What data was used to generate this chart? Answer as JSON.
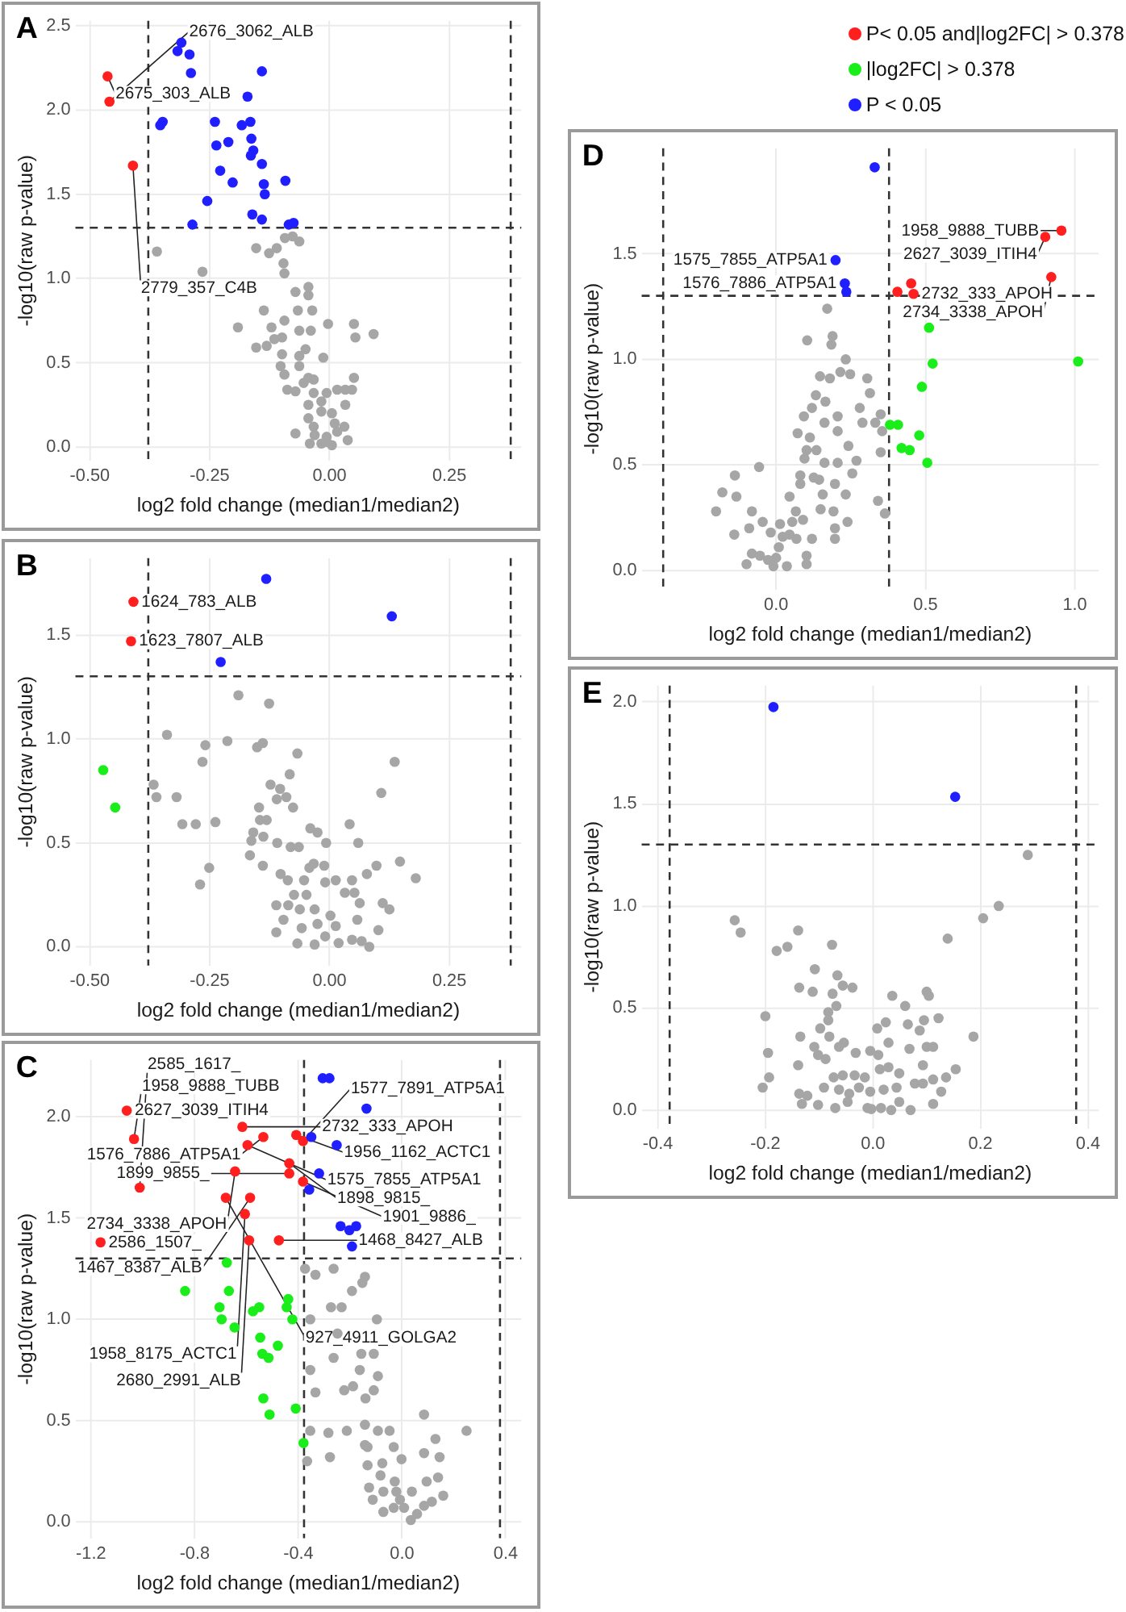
{
  "chart_data": [
    {
      "type": "scatter",
      "title": "A",
      "xlabel": "log2 fold change (median1/median2)",
      "ylabel": "-log10(raw p-value)",
      "xlim": [
        -0.53,
        0.4
      ],
      "ylim": [
        -0.08,
        2.53
      ],
      "xticks": [
        {
          "value": -0.5,
          "label": "-0.50"
        },
        {
          "value": -0.25,
          "label": "-0.25"
        },
        {
          "value": 0,
          "label": "0.00"
        },
        {
          "value": 0.25,
          "label": "0.25"
        }
      ],
      "yticks": [
        {
          "value": 0,
          "label": "0.0"
        },
        0.5,
        {
          "value": 1,
          "label": "1.0"
        },
        1.5,
        {
          "value": 2,
          "label": "2.0"
        },
        2.5
      ],
      "grid": true,
      "marker": "circle",
      "series": [
        {
          "color": "#a6a6a6",
          "x": [
            -0.36,
            -0.265,
            -0.153,
            -0.126,
            -0.11,
            -0.093,
            -0.077,
            -0.063,
            -0.096,
            -0.094,
            -0.044,
            -0.071,
            -0.044,
            -0.137,
            -0.066,
            -0.036,
            -0.094,
            -0.191,
            -0.121,
            -0.099,
            -0.063,
            -0.039,
            -0.003,
            0.051,
            0.054,
            0.092,
            -0.153,
            -0.131,
            -0.115,
            -0.05,
            -0.063,
            -0.099,
            -0.102,
            -0.063,
            -0.013,
            -0.094,
            -0.054,
            -0.044,
            -0.033,
            0.051,
            -0.088,
            -0.071,
            -0.033,
            -0.006,
            0.016,
            0.033,
            0.047,
            -0.044,
            -0.017,
            0.033,
            -0.044,
            -0.017,
            0.005,
            0.011,
            0.031,
            -0.033,
            -0.071,
            -0.031,
            -0.006,
            0.016,
            0.038,
            -0.041,
            -0.017,
            0.005,
            -0.006
          ],
          "values": [
            1.16,
            1.04,
            1.18,
            1.15,
            1.18,
            1.24,
            1.25,
            1.22,
            1.09,
            1.03,
            0.95,
            0.92,
            0.9,
            0.81,
            0.81,
            0.81,
            0.75,
            0.71,
            0.71,
            0.65,
            0.69,
            0.69,
            0.73,
            0.73,
            0.65,
            0.67,
            0.59,
            0.6,
            0.64,
            0.58,
            0.54,
            0.55,
            0.48,
            0.48,
            0.53,
            0.43,
            0.38,
            0.41,
            0.4,
            0.41,
            0.34,
            0.33,
            0.32,
            0.32,
            0.34,
            0.34,
            0.34,
            0.25,
            0.27,
            0.25,
            0.17,
            0.21,
            0.2,
            0.14,
            0.12,
            0.12,
            0.08,
            0.07,
            0.06,
            0.09,
            0.04,
            0.02,
            0.02,
            0.01,
            0.03
          ]
        },
        {
          "color": "#1f1fff",
          "x": [
            -0.309,
            -0.317,
            -0.292,
            -0.289,
            -0.141,
            -0.171,
            -0.348,
            -0.353,
            -0.239,
            -0.165,
            -0.183,
            -0.236,
            -0.211,
            -0.163,
            -0.159,
            -0.164,
            -0.228,
            -0.141,
            -0.202,
            -0.092,
            -0.137,
            -0.135,
            -0.255,
            -0.161,
            -0.141,
            -0.286,
            -0.085,
            -0.075
          ],
          "values": [
            2.4,
            2.35,
            2.33,
            2.22,
            2.23,
            2.08,
            1.93,
            1.91,
            1.93,
            1.93,
            1.91,
            1.79,
            1.81,
            1.83,
            1.76,
            1.73,
            1.64,
            1.68,
            1.57,
            1.58,
            1.56,
            1.5,
            1.46,
            1.38,
            1.35,
            1.32,
            1.32,
            1.33
          ]
        },
        {
          "color": "#ff1f1f",
          "x": [
            -0.463,
            -0.459,
            -0.41
          ],
          "values": [
            2.2,
            2.05,
            1.67
          ]
        }
      ],
      "ref_lines": [
        {
          "axis": "x",
          "value": -0.378,
          "line_style": "dashed"
        },
        {
          "axis": "x",
          "value": 0.378,
          "line_style": "dashed"
        },
        {
          "axis": "y",
          "value": 1.301,
          "line_style": "dashed"
        }
      ],
      "annotations": [
        {
          "text": "2675_303_ALB",
          "x": -0.463,
          "y": 2.2
        },
        {
          "text": "2676_3062_ALB",
          "x": -0.459,
          "y": 2.05
        },
        {
          "text": "2779_357_C4B",
          "x": -0.41,
          "y": 1.67
        }
      ]
    },
    {
      "type": "scatter",
      "title": "B",
      "xlabel": "log2 fold change (median1/median2)",
      "ylabel": "-log10(raw p-value)",
      "xlim": [
        -0.53,
        0.4
      ],
      "ylim": [
        -0.09,
        1.87
      ],
      "xticks": [
        {
          "value": -0.5,
          "label": "-0.50"
        },
        {
          "value": -0.25,
          "label": "-0.25"
        },
        {
          "value": 0,
          "label": "0.00"
        },
        {
          "value": 0.25,
          "label": "0.25"
        }
      ],
      "yticks": [
        {
          "value": 0,
          "label": "0.0"
        },
        0.5,
        {
          "value": 1,
          "label": "1.0"
        },
        1.5
      ],
      "grid": true,
      "marker": "circle",
      "series": [
        {
          "color": "#a6a6a6",
          "x": [
            -0.19,
            -0.126,
            -0.339,
            -0.259,
            -0.213,
            -0.151,
            -0.139,
            -0.067,
            -0.265,
            0.136,
            -0.083,
            -0.367,
            -0.361,
            -0.319,
            -0.123,
            -0.103,
            -0.11,
            -0.09,
            0.108,
            -0.147,
            -0.076,
            -0.307,
            -0.279,
            -0.238,
            -0.145,
            -0.131,
            -0.159,
            -0.04,
            -0.025,
            0.042,
            0.06,
            -0.007,
            -0.163,
            -0.138,
            -0.109,
            -0.081,
            -0.064,
            -0.166,
            -0.139,
            -0.251,
            -0.27,
            -0.102,
            -0.087,
            -0.042,
            -0.033,
            -0.011,
            0.098,
            0.147,
            0.18,
            0.078,
            -0.053,
            -0.009,
            0.013,
            0.047,
            -0.074,
            -0.048,
            0.032,
            0.052,
            -0.111,
            -0.086,
            -0.062,
            -0.031,
            0.002,
            0.063,
            0.111,
            0.125,
            -0.096,
            -0.058,
            -0.025,
            0.013,
            0.058,
            0.102,
            -0.111,
            -0.067,
            -0.031,
            -0.009,
            0.019,
            0.047,
            0.083,
            0.067
          ],
          "values": [
            1.21,
            1.17,
            1.02,
            0.97,
            0.99,
            0.96,
            0.98,
            0.93,
            0.89,
            0.89,
            0.83,
            0.78,
            0.72,
            0.72,
            0.78,
            0.76,
            0.71,
            0.72,
            0.74,
            0.67,
            0.67,
            0.59,
            0.59,
            0.6,
            0.61,
            0.61,
            0.55,
            0.57,
            0.55,
            0.59,
            0.5,
            0.5,
            0.51,
            0.53,
            0.5,
            0.48,
            0.48,
            0.44,
            0.39,
            0.38,
            0.3,
            0.35,
            0.32,
            0.38,
            0.4,
            0.39,
            0.39,
            0.41,
            0.33,
            0.35,
            0.32,
            0.31,
            0.32,
            0.32,
            0.25,
            0.25,
            0.26,
            0.26,
            0.2,
            0.2,
            0.18,
            0.18,
            0.15,
            0.21,
            0.21,
            0.18,
            0.13,
            0.09,
            0.11,
            0.1,
            0.13,
            0.08,
            0.07,
            0.016,
            0.011,
            0.05,
            0.018,
            0.034,
            0,
            0.027
          ]
        },
        {
          "color": "#1f1fff",
          "x": [
            -0.132,
            0.13,
            -0.227
          ],
          "values": [
            1.77,
            1.59,
            1.37
          ]
        },
        {
          "color": "#1aee1a",
          "x": [
            -0.472,
            -0.447
          ],
          "values": [
            0.85,
            0.67
          ]
        },
        {
          "color": "#ff1f1f",
          "x": [
            -0.409,
            -0.414
          ],
          "values": [
            1.66,
            1.47
          ]
        }
      ],
      "ref_lines": [
        {
          "axis": "x",
          "value": -0.378,
          "line_style": "dashed"
        },
        {
          "axis": "x",
          "value": 0.378,
          "line_style": "dashed"
        },
        {
          "axis": "y",
          "value": 1.301,
          "line_style": "dashed"
        }
      ],
      "annotations": [
        {
          "text": "1624_783_ALB",
          "x": -0.409,
          "y": 1.66
        },
        {
          "text": "1623_7807_ALB",
          "x": -0.414,
          "y": 1.47
        }
      ]
    },
    {
      "type": "scatter",
      "title": "C",
      "xlabel": "log2 fold change (median1/median2)",
      "ylabel": "-log10(raw p-value)",
      "xlim": [
        -1.26,
        0.46
      ],
      "ylim": [
        -0.08,
        2.28
      ],
      "xticks": [
        -1.2,
        -0.8,
        -0.4,
        {
          "value": 0,
          "label": "0.0"
        },
        0.4
      ],
      "yticks": [
        {
          "value": 0,
          "label": "0.0"
        },
        0.5,
        {
          "value": 1,
          "label": "1.0"
        },
        1.5,
        {
          "value": 2,
          "label": "2.0"
        }
      ],
      "grid": true,
      "marker": "circle",
      "series": [
        {
          "color": "#a6a6a6",
          "x": [
            -0.334,
            -0.374,
            -0.264,
            -0.143,
            -0.153,
            -0.193,
            -0.274,
            -0.233,
            -0.354,
            -0.249,
            -0.097,
            -0.354,
            -0.264,
            -0.157,
            -0.109,
            -0.163,
            -0.093,
            -0.334,
            -0.223,
            -0.189,
            -0.141,
            -0.109,
            -0.354,
            -0.284,
            -0.213,
            -0.143,
            -0.093,
            -0.048,
            0.085,
            0.249,
            0.129,
            -0.143,
            -0.133,
            -0.032,
            -0.366,
            -0.278,
            -0.133,
            -0.076,
            -0.002,
            0.085,
            0.145,
            -0.083,
            -0.028,
            -0.127,
            -0.072,
            -0.022,
            0.038,
            0.095,
            0.139,
            0.159,
            -0.113,
            -0.008,
            0.085,
            0.115,
            -0.072,
            0.008,
            0.034,
            0.058,
            -0.032
          ],
          "values": [
            1.22,
            1.25,
            1.25,
            1.21,
            1.18,
            1.14,
            1.06,
            1.06,
            1.0,
            0.93,
            1.0,
            0.75,
            0.81,
            0.83,
            0.83,
            0.75,
            0.72,
            0.64,
            0.65,
            0.67,
            0.61,
            0.65,
            0.45,
            0.44,
            0.45,
            0.48,
            0.45,
            0.45,
            0.53,
            0.45,
            0.41,
            0.38,
            0.37,
            0.37,
            0.3,
            0.32,
            0.28,
            0.29,
            0.31,
            0.34,
            0.32,
            0.23,
            0.2,
            0.17,
            0.15,
            0.15,
            0.15,
            0.2,
            0.22,
            0.13,
            0.11,
            0.11,
            0.08,
            0.1,
            0.05,
            0.07,
            0.01,
            0.04,
            0.07
          ]
        },
        {
          "color": "#1f1fff",
          "x": [
            -0.306,
            -0.28,
            -0.137,
            -0.35,
            -0.252,
            -0.32,
            -0.358,
            -0.237,
            -0.203,
            -0.177,
            -0.193
          ],
          "values": [
            2.19,
            2.19,
            2.04,
            1.9,
            1.86,
            1.72,
            1.64,
            1.46,
            1.44,
            1.46,
            1.36
          ]
        },
        {
          "color": "#1aee1a",
          "x": [
            -0.676,
            -0.837,
            -0.668,
            -0.704,
            -0.696,
            -0.646,
            -0.575,
            -0.551,
            -0.445,
            -0.439,
            -0.423,
            -0.547,
            -0.539,
            -0.515,
            -0.479,
            -0.535,
            -0.511,
            -0.41,
            -0.38
          ],
          "values": [
            1.28,
            1.14,
            1.14,
            1.06,
            1.0,
            0.96,
            1.04,
            1.06,
            1.06,
            1.1,
            1.0,
            0.91,
            0.83,
            0.81,
            0.87,
            0.61,
            0.53,
            0.56,
            0.39
          ]
        },
        {
          "color": "#ff1f1f",
          "x": [
            -1.062,
            -1.034,
            -1.012,
            -1.163,
            -0.616,
            -0.535,
            -0.596,
            -0.408,
            -0.382,
            -0.435,
            -0.435,
            -0.644,
            -0.68,
            -0.586,
            -0.382,
            -0.606,
            -0.59,
            -0.475
          ],
          "values": [
            2.03,
            1.89,
            1.65,
            1.38,
            1.95,
            1.9,
            1.86,
            1.91,
            1.88,
            1.77,
            1.72,
            1.73,
            1.6,
            1.6,
            1.68,
            1.52,
            1.39,
            1.39
          ]
        }
      ],
      "ref_lines": [
        {
          "axis": "x",
          "value": -0.378,
          "line_style": "dashed"
        },
        {
          "axis": "x",
          "value": 0.378,
          "line_style": "dashed"
        },
        {
          "axis": "y",
          "value": 1.301,
          "line_style": "dashed"
        }
      ],
      "annotations": [
        {
          "text": "2627_3039_ITIH4",
          "x": -1.062,
          "y": 2.03
        },
        {
          "text": "2732_333_APOH",
          "x": -0.616,
          "y": 1.95
        },
        {
          "text": "1576_7886_ATP5A1",
          "x": -0.535,
          "y": 1.9
        },
        {
          "text": "1958_9888_TUBB",
          "x": -1.034,
          "y": 1.89
        },
        {
          "text": "1956_1162_ACTC1",
          "x": -0.408,
          "y": 1.91
        },
        {
          "text": "1575_7855_ATP5A1",
          "x": -0.596,
          "y": 1.86
        },
        {
          "text": "1898_9815_",
          "x": -0.435,
          "y": 1.77
        },
        {
          "text": "1577_7891_ATP5A1",
          "x": -0.382,
          "y": 1.88
        },
        {
          "text": "2734_3338_APOH",
          "x": -0.644,
          "y": 1.73
        },
        {
          "text": "1899_9855_",
          "x": -0.435,
          "y": 1.72
        },
        {
          "text": "1901_9886_",
          "x": -0.382,
          "y": 1.68
        },
        {
          "text": "2585_1617_",
          "x": -1.012,
          "y": 1.65
        },
        {
          "text": "1958_8175_ACTC1",
          "x": -0.606,
          "y": 1.52
        },
        {
          "text": "1467_8387_ALB",
          "x": -0.586,
          "y": 1.6
        },
        {
          "text": "2680_2991_ALB",
          "x": -0.59,
          "y": 1.39
        },
        {
          "text": "1468_8427_ALB",
          "x": -0.475,
          "y": 1.39
        },
        {
          "text": "2586_1507_",
          "x": -1.163,
          "y": 1.38
        },
        {
          "text": "927_4911_GOLGA2",
          "x": -0.68,
          "y": 1.6
        }
      ]
    },
    {
      "type": "scatter",
      "title": "D",
      "xlabel": "log2 fold change (median1/median2)",
      "ylabel": "-log10(raw p-value)",
      "xlim": [
        -0.45,
        1.08
      ],
      "ylim": [
        -0.09,
        2.0
      ],
      "xticks": [
        {
          "value": 0,
          "label": "0.0"
        },
        0.5,
        {
          "value": 1,
          "label": "1.0"
        }
      ],
      "yticks": [
        {
          "value": 0,
          "label": "0.0"
        },
        0.5,
        {
          "value": 1,
          "label": "1.0"
        },
        1.5
      ],
      "grid": true,
      "marker": "circle",
      "legend": "top right",
      "series": [
        {
          "color": "#a6a6a6",
          "x": [
            0.171,
            0.104,
            0.189,
            0.185,
            0.233,
            0.147,
            0.18,
            0.215,
            0.248,
            0.305,
            0.314,
            0.133,
            0.165,
            0.28,
            0.12,
            0.093,
            0.162,
            0.206,
            0.289,
            0.332,
            0.35,
            0.072,
            0.113,
            0.206,
            0.242,
            0.355,
            0.35,
            0.102,
            0.135,
            0.095,
            0.162,
            0.206,
            0.269,
            -0.057,
            -0.138,
            0.081,
            0.126,
            0.255,
            0.081,
            0.144,
            0.197,
            0.045,
            0.156,
            0.233,
            -0.18,
            -0.133,
            0.341,
            -0.201,
            -0.081,
            0.066,
            0.149,
            0.192,
            0.364,
            -0.045,
            0.013,
            0.054,
            0.09,
            0.239,
            -0.14,
            -0.09,
            -0.018,
            0.022,
            0.068,
            0.197,
            0.197,
            0.12,
            -0.081,
            -0.054,
            -0.027,
            0,
            0.009,
            -0.009,
            0.036,
            -0.099,
            0.102,
            0.102,
            0.045
          ],
          "values": [
            1.24,
            1.09,
            1.11,
            1.07,
            1.0,
            0.92,
            0.91,
            0.94,
            0.93,
            0.91,
            0.84,
            0.83,
            0.8,
            0.77,
            0.77,
            0.73,
            0.7,
            0.73,
            0.7,
            0.7,
            0.74,
            0.65,
            0.63,
            0.66,
            0.59,
            0.66,
            0.56,
            0.57,
            0.57,
            0.53,
            0.51,
            0.51,
            0.52,
            0.49,
            0.45,
            0.45,
            0.44,
            0.46,
            0.41,
            0.43,
            0.41,
            0.35,
            0.36,
            0.36,
            0.37,
            0.35,
            0.33,
            0.28,
            0.28,
            0.28,
            0.29,
            0.28,
            0.27,
            0.23,
            0.22,
            0.23,
            0.24,
            0.23,
            0.17,
            0.2,
            0.18,
            0.16,
            0.15,
            0.2,
            0.15,
            0.15,
            0.08,
            0.07,
            0.05,
            0.06,
            0.11,
            0.02,
            0.02,
            0.03,
            0.07,
            0.03,
            0.17
          ]
        },
        {
          "name": "P< 0.05 and|log2FC| > 0.378",
          "color": "#ff1f1f",
          "x": [
            0.955,
            0.901,
            0.921,
            0.452,
            0.406,
            0.46
          ],
          "values": [
            1.61,
            1.58,
            1.39,
            1.36,
            1.32,
            1.31
          ]
        },
        {
          "name": "|log2FC| > 0.378",
          "color": "#1aee1a",
          "x": [
            0.512,
            0.524,
            1.011,
            0.488,
            0.381,
            0.408,
            0.479,
            0.42,
            0.447,
            0.506
          ],
          "values": [
            1.15,
            0.98,
            0.99,
            0.87,
            0.69,
            0.69,
            0.64,
            0.58,
            0.57,
            0.51
          ]
        },
        {
          "name": "P < 0.05",
          "color": "#1f1fff",
          "x": [
            0.33,
            0.199,
            0.23,
            0.235
          ],
          "values": [
            1.91,
            1.47,
            1.36,
            1.32
          ]
        }
      ],
      "ref_lines": [
        {
          "axis": "x",
          "value": -0.378,
          "line_style": "dashed"
        },
        {
          "axis": "x",
          "value": 0.378,
          "line_style": "dashed"
        },
        {
          "axis": "y",
          "value": 1.301,
          "line_style": "dashed"
        }
      ],
      "annotations": [
        {
          "text": "1958_9888_TUBB",
          "x": 0.955,
          "y": 1.61
        },
        {
          "text": "2627_3039_ITIH4",
          "x": 0.901,
          "y": 1.58
        },
        {
          "text": "1575_7855_ATP5A1",
          "x": 0.199,
          "y": 1.47
        },
        {
          "text": "2734_3338_APOH",
          "x": 0.921,
          "y": 1.39
        },
        {
          "text": "1576_7886_ATP5A1",
          "x": 0.23,
          "y": 1.36
        },
        {
          "text": "2732_333_APOH",
          "x": 0.46,
          "y": 1.31
        }
      ]
    },
    {
      "type": "scatter",
      "title": "E",
      "xlabel": "log2 fold change (median1/median2)",
      "ylabel": "-log10(raw p-value)",
      "xlim": [
        -0.43,
        0.42
      ],
      "ylim": [
        -0.09,
        2.08
      ],
      "xticks": [
        -0.4,
        -0.2,
        {
          "value": 0,
          "label": "0.0"
        },
        0.2,
        0.4
      ],
      "yticks": [
        {
          "value": 0,
          "label": "0.0"
        },
        0.5,
        {
          "value": 1,
          "label": "1.0"
        },
        1.5,
        {
          "value": 2,
          "label": "2.0"
        }
      ],
      "grid": true,
      "marker": "circle",
      "series": [
        {
          "color": "#a6a6a6",
          "x": [
            0.288,
            0.234,
            0.205,
            0.139,
            -0.257,
            -0.246,
            -0.139,
            -0.076,
            -0.179,
            -0.159,
            -0.108,
            -0.066,
            -0.056,
            -0.038,
            -0.137,
            -0.112,
            -0.075,
            -0.068,
            -0.083,
            0.036,
            0.06,
            0.1,
            0.104,
            -0.2,
            -0.083,
            0.024,
            0.065,
            0.095,
            0.122,
            -0.135,
            -0.098,
            -0.081,
            -0.054,
            0.008,
            0.029,
            0.087,
            0.187,
            -0.195,
            -0.109,
            -0.063,
            -0.032,
            -0.005,
            0.01,
            0.068,
            0.1,
            0.112,
            -0.139,
            -0.102,
            -0.088,
            0.093,
            0.154,
            -0.193,
            -0.205,
            -0.073,
            -0.056,
            -0.034,
            -0.015,
            0.013,
            0.029,
            0.049,
            0.136,
            -0.137,
            -0.122,
            -0.091,
            -0.063,
            -0.044,
            -0.026,
            -0.005,
            0.02,
            0.044,
            0.078,
            0.093,
            0.112,
            0.127,
            -0.132,
            -0.102,
            -0.07,
            -0.047,
            -0.01,
            -0.003,
            0.015,
            0.034,
            0.049,
            0.07,
            0.112
          ],
          "values": [
            1.25,
            1.0,
            0.94,
            0.84,
            0.93,
            0.87,
            0.88,
            0.81,
            0.78,
            0.8,
            0.69,
            0.66,
            0.61,
            0.6,
            0.6,
            0.58,
            0.57,
            0.51,
            0.48,
            0.56,
            0.51,
            0.58,
            0.56,
            0.46,
            0.44,
            0.43,
            0.42,
            0.44,
            0.45,
            0.36,
            0.4,
            0.36,
            0.33,
            0.4,
            0.33,
            0.39,
            0.36,
            0.28,
            0.31,
            0.31,
            0.28,
            0.29,
            0.27,
            0.3,
            0.31,
            0.31,
            0.22,
            0.27,
            0.25,
            0.22,
            0.2,
            0.16,
            0.11,
            0.16,
            0.17,
            0.17,
            0.16,
            0.2,
            0.21,
            0.18,
            0.16,
            0.08,
            0.07,
            0.11,
            0.1,
            0.08,
            0.11,
            0.09,
            0.1,
            0.11,
            0.13,
            0.13,
            0.15,
            0.09,
            0.03,
            0.025,
            0.01,
            0.04,
            0.01,
            0.005,
            0.01,
            0,
            0.04,
            0,
            0.03
          ]
        },
        {
          "color": "#1f1fff",
          "x": [
            -0.185,
            0.153
          ],
          "values": [
            1.975,
            1.535
          ]
        }
      ],
      "ref_lines": [
        {
          "axis": "x",
          "value": -0.378,
          "line_style": "dashed"
        },
        {
          "axis": "x",
          "value": 0.378,
          "line_style": "dashed"
        },
        {
          "axis": "y",
          "value": 1.301,
          "line_style": "dashed"
        }
      ]
    }
  ]
}
